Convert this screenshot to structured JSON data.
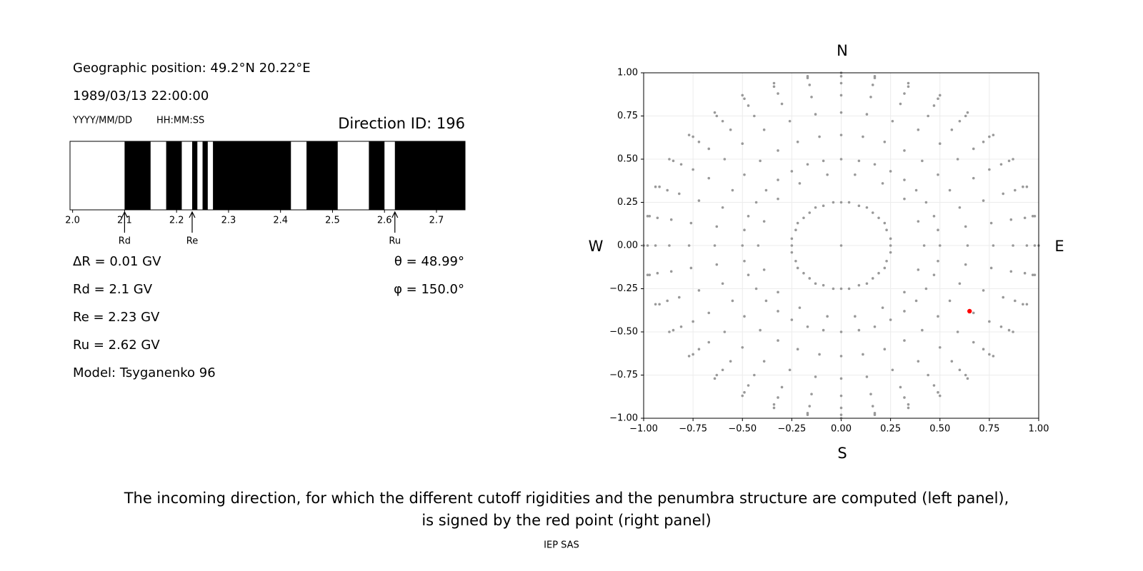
{
  "info": {
    "position": "Geographic position: 49.2°N 20.22°E",
    "datetime": "1989/03/13 22:00:00",
    "date_format": "YYYY/MM/DD",
    "time_format": "HH:MM:SS",
    "direction_id": "Direction ID: 196",
    "delta_r": "ΔR = 0.01 GV",
    "rd": "Rd = 2.1 GV",
    "re": "Re = 2.23 GV",
    "ru": "Ru = 2.62 GV",
    "model": "Model: Tsyganenko 96",
    "theta": "θ = 48.99°",
    "phi": "φ = 150.0°"
  },
  "chart_data": [
    {
      "type": "penumbra",
      "xlim": [
        1.995,
        2.755
      ],
      "xticks": [
        {
          "value": 2,
          "label": "2.0"
        },
        2.1,
        2.2,
        2.3,
        2.4,
        2.5,
        2.6,
        2.7
      ],
      "color": "#000000",
      "forbidden": [
        [
          2.1,
          2.15
        ],
        [
          2.18,
          2.21
        ],
        [
          2.23,
          2.24
        ],
        [
          2.25,
          2.26
        ],
        [
          2.27,
          2.42
        ],
        [
          2.45,
          2.51
        ],
        [
          2.57,
          2.6
        ],
        [
          2.62,
          2.755
        ]
      ],
      "markers": [
        {
          "label": "Rd",
          "value": 2.1
        },
        {
          "label": "Re",
          "value": 2.23
        },
        {
          "label": "Ru",
          "value": 2.62
        }
      ]
    },
    {
      "type": "scatter",
      "xlim": [
        -1,
        1
      ],
      "ylim": [
        -1,
        1
      ],
      "grid": true,
      "xticks": [
        {
          "value": -1,
          "label": "−1.00"
        },
        {
          "value": -0.75,
          "label": "−0.75"
        },
        {
          "value": -0.5,
          "label": "−0.50"
        },
        {
          "value": -0.25,
          "label": "−0.25"
        },
        {
          "value": 0,
          "label": "0.00"
        },
        {
          "value": 0.25,
          "label": "0.25"
        },
        {
          "value": 0.5,
          "label": "0.50"
        },
        {
          "value": 0.75,
          "label": "0.75"
        },
        {
          "value": 1,
          "label": "1.00"
        }
      ],
      "yticks": [
        {
          "value": -1,
          "label": "−1.00"
        },
        {
          "value": -0.75,
          "label": "−0.75"
        },
        {
          "value": -0.5,
          "label": "−0.50"
        },
        {
          "value": -0.25,
          "label": "−0.25"
        },
        {
          "value": 0,
          "label": "0.00"
        },
        {
          "value": 0.25,
          "label": "0.25"
        },
        {
          "value": 0.5,
          "label": "0.50"
        },
        {
          "value": 0.75,
          "label": "0.75"
        },
        {
          "value": 1,
          "label": "1.00"
        }
      ],
      "compass": {
        "north": "N",
        "south": "S",
        "west": "W",
        "east": "E"
      },
      "series": [
        {
          "color": "#999999",
          "x": [
            0.25,
            0.5,
            0.64,
            0.77,
            0.87,
            0.94,
            0.98,
            1,
            0.25,
            0.49,
            0.63,
            0.76,
            0.86,
            0.93,
            0.97,
            0.98,
            0.23,
            0.47,
            0.6,
            0.72,
            0.82,
            0.88,
            0.92,
            0.94,
            0.22,
            0.43,
            0.55,
            0.67,
            0.75,
            0.81,
            0.85,
            0.87,
            0.19,
            0.38,
            0.49,
            0.59,
            0.67,
            0.72,
            0.75,
            0.77,
            0.16,
            0.32,
            0.41,
            0.5,
            0.56,
            0.6,
            0.63,
            0.64,
            0.13,
            0.25,
            0.32,
            0.39,
            0.44,
            0.47,
            0.49,
            0.5,
            0.09,
            0.17,
            0.22,
            0.26,
            0.3,
            0.32,
            0.34,
            0.34,
            0.04,
            0.09,
            0.11,
            0.13,
            0.15,
            0.16,
            0.17,
            0.17,
            0,
            0,
            0,
            0,
            0,
            0,
            0,
            0,
            -0.04,
            -0.09,
            -0.11,
            -0.13,
            -0.15,
            -0.16,
            -0.17,
            -0.17,
            -0.09,
            -0.17,
            -0.22,
            -0.26,
            -0.3,
            -0.32,
            -0.34,
            -0.34,
            -0.13,
            -0.25,
            -0.32,
            -0.39,
            -0.44,
            -0.47,
            -0.49,
            -0.5,
            -0.16,
            -0.32,
            -0.41,
            -0.5,
            -0.56,
            -0.6,
            -0.63,
            -0.64,
            -0.19,
            -0.38,
            -0.49,
            -0.59,
            -0.67,
            -0.72,
            -0.75,
            -0.77,
            -0.22,
            -0.43,
            -0.55,
            -0.67,
            -0.75,
            -0.81,
            -0.85,
            -0.87,
            -0.23,
            -0.47,
            -0.6,
            -0.72,
            -0.82,
            -0.88,
            -0.92,
            -0.94,
            -0.25,
            -0.49,
            -0.63,
            -0.76,
            -0.86,
            -0.93,
            -0.97,
            -0.98,
            -0.25,
            -0.5,
            -0.64,
            -0.77,
            -0.87,
            -0.94,
            -0.98,
            -1,
            -0.25,
            -0.49,
            -0.63,
            -0.76,
            -0.86,
            -0.93,
            -0.97,
            -0.98,
            -0.23,
            -0.47,
            -0.6,
            -0.72,
            -0.82,
            -0.88,
            -0.92,
            -0.94,
            -0.22,
            -0.43,
            -0.55,
            -0.67,
            -0.75,
            -0.81,
            -0.85,
            -0.87,
            -0.19,
            -0.38,
            -0.49,
            -0.59,
            -0.67,
            -0.72,
            -0.75,
            -0.77,
            -0.16,
            -0.32,
            -0.41,
            -0.5,
            -0.56,
            -0.6,
            -0.63,
            -0.64,
            -0.13,
            -0.25,
            -0.32,
            -0.39,
            -0.44,
            -0.47,
            -0.49,
            -0.5,
            -0.09,
            -0.17,
            -0.22,
            -0.26,
            -0.3,
            -0.32,
            -0.34,
            -0.34,
            -0.04,
            -0.09,
            -0.11,
            -0.13,
            -0.15,
            -0.16,
            -0.17,
            -0.17,
            0,
            0,
            0,
            0,
            0,
            0,
            0,
            0,
            0.04,
            0.09,
            0.11,
            0.13,
            0.15,
            0.16,
            0.17,
            0.17,
            0.09,
            0.17,
            0.22,
            0.26,
            0.3,
            0.32,
            0.34,
            0.34,
            0.13,
            0.25,
            0.32,
            0.39,
            0.44,
            0.47,
            0.49,
            0.5,
            0.16,
            0.32,
            0.41,
            0.5,
            0.56,
            0.6,
            0.63,
            0.64,
            0.19,
            0.38,
            0.49,
            0.59,
            0.67,
            0.72,
            0.75,
            0.77,
            0.22,
            0.43,
            0.55,
            0.67,
            0.75,
            0.81,
            0.85,
            0.87,
            0.23,
            0.47,
            0.6,
            0.72,
            0.82,
            0.88,
            0.92,
            0.94,
            0.25,
            0.49,
            0.63,
            0.76,
            0.86,
            0.93,
            0.97,
            0.98,
            0.42,
            0.39,
            0.32,
            0.21,
            0.07,
            -0.07,
            -0.21,
            -0.32,
            -0.39,
            -0.42,
            -0.39,
            -0.32,
            -0.21,
            -0.07,
            0.07,
            0.21,
            0.32,
            0.39,
            0
          ],
          "y": [
            0,
            0,
            0,
            0,
            0,
            0,
            0,
            0,
            0.04,
            0.09,
            0.11,
            0.13,
            0.15,
            0.16,
            0.17,
            0.17,
            0.09,
            0.17,
            0.22,
            0.26,
            0.3,
            0.32,
            0.34,
            0.34,
            0.13,
            0.25,
            0.32,
            0.39,
            0.44,
            0.47,
            0.49,
            0.5,
            0.16,
            0.32,
            0.41,
            0.5,
            0.56,
            0.6,
            0.63,
            0.64,
            0.19,
            0.38,
            0.49,
            0.59,
            0.67,
            0.72,
            0.75,
            0.77,
            0.22,
            0.43,
            0.55,
            0.67,
            0.75,
            0.81,
            0.85,
            0.87,
            0.23,
            0.47,
            0.6,
            0.72,
            0.82,
            0.88,
            0.92,
            0.94,
            0.25,
            0.49,
            0.63,
            0.76,
            0.86,
            0.93,
            0.97,
            0.98,
            0.25,
            0.5,
            0.64,
            0.77,
            0.87,
            0.94,
            0.98,
            1,
            0.25,
            0.49,
            0.63,
            0.76,
            0.86,
            0.93,
            0.97,
            0.98,
            0.23,
            0.47,
            0.6,
            0.72,
            0.82,
            0.88,
            0.92,
            0.94,
            0.22,
            0.43,
            0.55,
            0.67,
            0.75,
            0.81,
            0.85,
            0.87,
            0.19,
            0.38,
            0.49,
            0.59,
            0.67,
            0.72,
            0.75,
            0.77,
            0.16,
            0.32,
            0.41,
            0.5,
            0.56,
            0.6,
            0.63,
            0.64,
            0.13,
            0.25,
            0.32,
            0.39,
            0.44,
            0.47,
            0.49,
            0.5,
            0.09,
            0.17,
            0.22,
            0.26,
            0.3,
            0.32,
            0.34,
            0.34,
            0.04,
            0.09,
            0.11,
            0.13,
            0.15,
            0.16,
            0.17,
            0.17,
            0,
            0,
            0,
            0,
            0,
            0,
            0,
            0,
            -0.04,
            -0.09,
            -0.11,
            -0.13,
            -0.15,
            -0.16,
            -0.17,
            -0.17,
            -0.09,
            -0.17,
            -0.22,
            -0.26,
            -0.3,
            -0.32,
            -0.34,
            -0.34,
            -0.13,
            -0.25,
            -0.32,
            -0.39,
            -0.44,
            -0.47,
            -0.49,
            -0.5,
            -0.16,
            -0.32,
            -0.41,
            -0.5,
            -0.56,
            -0.6,
            -0.63,
            -0.64,
            -0.19,
            -0.38,
            -0.49,
            -0.59,
            -0.67,
            -0.72,
            -0.75,
            -0.77,
            -0.22,
            -0.43,
            -0.55,
            -0.67,
            -0.75,
            -0.81,
            -0.85,
            -0.87,
            -0.23,
            -0.47,
            -0.6,
            -0.72,
            -0.82,
            -0.88,
            -0.92,
            -0.94,
            -0.25,
            -0.49,
            -0.63,
            -0.76,
            -0.86,
            -0.93,
            -0.97,
            -0.98,
            -0.25,
            -0.5,
            -0.64,
            -0.77,
            -0.87,
            -0.94,
            -0.98,
            -1,
            -0.25,
            -0.49,
            -0.63,
            -0.76,
            -0.86,
            -0.93,
            -0.97,
            -0.98,
            -0.23,
            -0.47,
            -0.6,
            -0.72,
            -0.82,
            -0.88,
            -0.92,
            -0.94,
            -0.22,
            -0.43,
            -0.55,
            -0.67,
            -0.75,
            -0.81,
            -0.85,
            -0.87,
            -0.19,
            -0.38,
            -0.49,
            -0.59,
            -0.67,
            -0.72,
            -0.75,
            -0.77,
            -0.16,
            -0.32,
            -0.41,
            -0.5,
            -0.56,
            -0.6,
            -0.63,
            -0.64,
            -0.13,
            -0.25,
            -0.32,
            -0.39,
            -0.44,
            -0.47,
            -0.49,
            -0.5,
            -0.09,
            -0.17,
            -0.22,
            -0.26,
            -0.3,
            -0.32,
            -0.34,
            -0.34,
            -0.04,
            -0.09,
            -0.11,
            -0.13,
            -0.15,
            -0.16,
            -0.17,
            -0.17,
            0,
            0.14,
            0.27,
            0.36,
            0.41,
            0.41,
            0.36,
            0.27,
            0.14,
            0,
            -0.14,
            -0.27,
            -0.36,
            -0.41,
            -0.41,
            -0.36,
            -0.27,
            -0.14,
            0
          ]
        },
        {
          "color": "#ff0000",
          "x": [
            0.65
          ],
          "y": [
            -0.38
          ]
        }
      ]
    }
  ],
  "caption": [
    "The incoming direction, for which the different cutoff rigidities and the penumbra structure are computed (left panel),",
    "is signed by the red point (right panel)"
  ],
  "footer": "IEP SAS"
}
